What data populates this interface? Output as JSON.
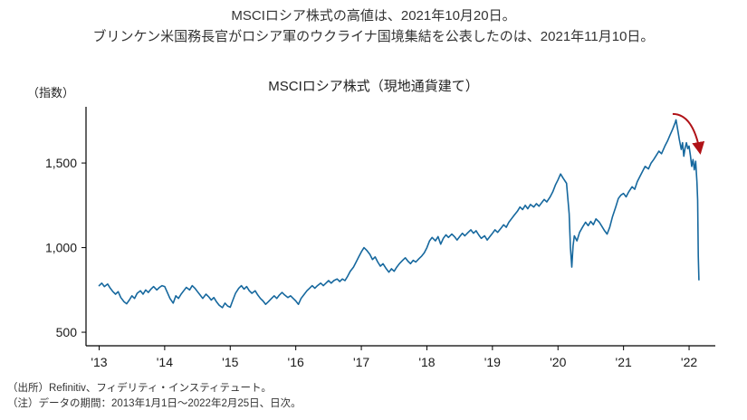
{
  "header": {
    "line1": "MSCIロシア株式の高値は、2021年10月20日。",
    "line2": "ブリンケン米国務長官がロシア軍のウクライナ国境集結を公表したのは、2021年11月10日。"
  },
  "footer": {
    "source": "（出所）Refinitiv、フィデリティ・インスティテュート。",
    "note": "（注）データの期間：2013年1月1日〜2022年2月25日、日次。"
  },
  "chart_data": {
    "type": "line",
    "title": "MSCIロシア株式（現地通貨建て）",
    "xlabel": "",
    "ylabel": "（指数）",
    "unit_label": "（指数）",
    "grid": false,
    "legend": "none",
    "xlim": [
      2012.8,
      2022.4
    ],
    "ylim": [
      420,
      1800
    ],
    "y_ticks": [
      {
        "value": 500,
        "label": "500"
      },
      {
        "value": 1000,
        "label": "1,000"
      },
      {
        "value": 1500,
        "label": "1,500"
      }
    ],
    "x_ticks": [
      {
        "value": 2013,
        "label": "'13"
      },
      {
        "value": 2014,
        "label": "'14"
      },
      {
        "value": 2015,
        "label": "'15"
      },
      {
        "value": 2016,
        "label": "'16"
      },
      {
        "value": 2017,
        "label": "'17"
      },
      {
        "value": 2018,
        "label": "'18"
      },
      {
        "value": 2019,
        "label": "'19"
      },
      {
        "value": 2020,
        "label": "'20"
      },
      {
        "value": 2021,
        "label": "'21"
      },
      {
        "value": 2022,
        "label": "'22"
      }
    ],
    "annotation": {
      "type": "arrow",
      "meaning": "peak-then-plunge marker",
      "color": "#b01217",
      "from_x": 2021.75,
      "from_y": 1790,
      "to_x": 2022.17,
      "to_y": 1560
    },
    "series": [
      {
        "name": "MSCIロシア株式（現地通貨建て）",
        "color": "#16689e",
        "points": [
          [
            2013.0,
            775
          ],
          [
            2013.04,
            790
          ],
          [
            2013.08,
            770
          ],
          [
            2013.13,
            785
          ],
          [
            2013.17,
            760
          ],
          [
            2013.21,
            740
          ],
          [
            2013.25,
            725
          ],
          [
            2013.29,
            740
          ],
          [
            2013.33,
            705
          ],
          [
            2013.38,
            680
          ],
          [
            2013.42,
            668
          ],
          [
            2013.46,
            690
          ],
          [
            2013.5,
            715
          ],
          [
            2013.54,
            700
          ],
          [
            2013.58,
            730
          ],
          [
            2013.63,
            745
          ],
          [
            2013.67,
            725
          ],
          [
            2013.71,
            750
          ],
          [
            2013.75,
            735
          ],
          [
            2013.79,
            755
          ],
          [
            2013.83,
            770
          ],
          [
            2013.88,
            750
          ],
          [
            2013.92,
            765
          ],
          [
            2013.96,
            775
          ],
          [
            2014.0,
            770
          ],
          [
            2014.04,
            735
          ],
          [
            2014.08,
            700
          ],
          [
            2014.13,
            672
          ],
          [
            2014.17,
            715
          ],
          [
            2014.21,
            700
          ],
          [
            2014.25,
            725
          ],
          [
            2014.29,
            745
          ],
          [
            2014.33,
            765
          ],
          [
            2014.38,
            750
          ],
          [
            2014.42,
            775
          ],
          [
            2014.46,
            760
          ],
          [
            2014.5,
            740
          ],
          [
            2014.54,
            720
          ],
          [
            2014.58,
            700
          ],
          [
            2014.63,
            725
          ],
          [
            2014.67,
            710
          ],
          [
            2014.71,
            690
          ],
          [
            2014.75,
            705
          ],
          [
            2014.79,
            680
          ],
          [
            2014.83,
            660
          ],
          [
            2014.88,
            645
          ],
          [
            2014.92,
            672
          ],
          [
            2014.96,
            655
          ],
          [
            2015.0,
            648
          ],
          [
            2015.04,
            690
          ],
          [
            2015.08,
            730
          ],
          [
            2015.13,
            760
          ],
          [
            2015.17,
            775
          ],
          [
            2015.21,
            755
          ],
          [
            2015.25,
            770
          ],
          [
            2015.29,
            745
          ],
          [
            2015.33,
            730
          ],
          [
            2015.38,
            745
          ],
          [
            2015.42,
            720
          ],
          [
            2015.46,
            700
          ],
          [
            2015.5,
            685
          ],
          [
            2015.54,
            665
          ],
          [
            2015.58,
            680
          ],
          [
            2015.63,
            700
          ],
          [
            2015.67,
            715
          ],
          [
            2015.71,
            700
          ],
          [
            2015.75,
            720
          ],
          [
            2015.79,
            735
          ],
          [
            2015.83,
            720
          ],
          [
            2015.88,
            705
          ],
          [
            2015.92,
            715
          ],
          [
            2015.96,
            700
          ],
          [
            2016.0,
            685
          ],
          [
            2016.04,
            665
          ],
          [
            2016.08,
            700
          ],
          [
            2016.13,
            725
          ],
          [
            2016.17,
            745
          ],
          [
            2016.21,
            760
          ],
          [
            2016.25,
            775
          ],
          [
            2016.29,
            760
          ],
          [
            2016.33,
            775
          ],
          [
            2016.38,
            790
          ],
          [
            2016.42,
            775
          ],
          [
            2016.46,
            790
          ],
          [
            2016.5,
            805
          ],
          [
            2016.54,
            790
          ],
          [
            2016.58,
            805
          ],
          [
            2016.63,
            815
          ],
          [
            2016.67,
            800
          ],
          [
            2016.71,
            815
          ],
          [
            2016.75,
            805
          ],
          [
            2016.79,
            830
          ],
          [
            2016.83,
            860
          ],
          [
            2016.88,
            885
          ],
          [
            2016.92,
            915
          ],
          [
            2016.96,
            945
          ],
          [
            2017.0,
            975
          ],
          [
            2017.04,
            1000
          ],
          [
            2017.08,
            985
          ],
          [
            2017.13,
            960
          ],
          [
            2017.17,
            930
          ],
          [
            2017.21,
            945
          ],
          [
            2017.25,
            915
          ],
          [
            2017.29,
            890
          ],
          [
            2017.33,
            905
          ],
          [
            2017.38,
            875
          ],
          [
            2017.42,
            855
          ],
          [
            2017.46,
            875
          ],
          [
            2017.5,
            860
          ],
          [
            2017.54,
            885
          ],
          [
            2017.58,
            905
          ],
          [
            2017.63,
            925
          ],
          [
            2017.67,
            940
          ],
          [
            2017.71,
            920
          ],
          [
            2017.75,
            905
          ],
          [
            2017.79,
            925
          ],
          [
            2017.83,
            915
          ],
          [
            2017.88,
            935
          ],
          [
            2017.92,
            950
          ],
          [
            2017.96,
            970
          ],
          [
            2018.0,
            1000
          ],
          [
            2018.04,
            1040
          ],
          [
            2018.08,
            1060
          ],
          [
            2018.13,
            1040
          ],
          [
            2018.17,
            1065
          ],
          [
            2018.21,
            1020
          ],
          [
            2018.25,
            1055
          ],
          [
            2018.29,
            1075
          ],
          [
            2018.33,
            1060
          ],
          [
            2018.38,
            1080
          ],
          [
            2018.42,
            1065
          ],
          [
            2018.46,
            1045
          ],
          [
            2018.5,
            1065
          ],
          [
            2018.54,
            1085
          ],
          [
            2018.58,
            1070
          ],
          [
            2018.63,
            1090
          ],
          [
            2018.67,
            1105
          ],
          [
            2018.71,
            1085
          ],
          [
            2018.75,
            1100
          ],
          [
            2018.79,
            1075
          ],
          [
            2018.83,
            1055
          ],
          [
            2018.88,
            1070
          ],
          [
            2018.92,
            1045
          ],
          [
            2018.96,
            1065
          ],
          [
            2019.0,
            1085
          ],
          [
            2019.04,
            1105
          ],
          [
            2019.08,
            1090
          ],
          [
            2019.13,
            1115
          ],
          [
            2019.17,
            1135
          ],
          [
            2019.21,
            1120
          ],
          [
            2019.25,
            1150
          ],
          [
            2019.29,
            1170
          ],
          [
            2019.33,
            1190
          ],
          [
            2019.38,
            1215
          ],
          [
            2019.42,
            1240
          ],
          [
            2019.46,
            1225
          ],
          [
            2019.5,
            1250
          ],
          [
            2019.54,
            1230
          ],
          [
            2019.58,
            1255
          ],
          [
            2019.63,
            1240
          ],
          [
            2019.67,
            1260
          ],
          [
            2019.71,
            1245
          ],
          [
            2019.75,
            1265
          ],
          [
            2019.79,
            1285
          ],
          [
            2019.83,
            1270
          ],
          [
            2019.88,
            1300
          ],
          [
            2019.92,
            1330
          ],
          [
            2019.96,
            1370
          ],
          [
            2020.0,
            1400
          ],
          [
            2020.04,
            1435
          ],
          [
            2020.08,
            1410
          ],
          [
            2020.13,
            1380
          ],
          [
            2020.17,
            1200
          ],
          [
            2020.19,
            1000
          ],
          [
            2020.21,
            885
          ],
          [
            2020.23,
            1010
          ],
          [
            2020.25,
            1070
          ],
          [
            2020.29,
            1040
          ],
          [
            2020.33,
            1090
          ],
          [
            2020.38,
            1125
          ],
          [
            2020.42,
            1150
          ],
          [
            2020.46,
            1130
          ],
          [
            2020.5,
            1155
          ],
          [
            2020.54,
            1135
          ],
          [
            2020.58,
            1170
          ],
          [
            2020.63,
            1150
          ],
          [
            2020.67,
            1125
          ],
          [
            2020.71,
            1100
          ],
          [
            2020.75,
            1080
          ],
          [
            2020.79,
            1120
          ],
          [
            2020.83,
            1180
          ],
          [
            2020.88,
            1240
          ],
          [
            2020.92,
            1290
          ],
          [
            2020.96,
            1310
          ],
          [
            2021.0,
            1320
          ],
          [
            2021.04,
            1300
          ],
          [
            2021.08,
            1330
          ],
          [
            2021.13,
            1360
          ],
          [
            2021.17,
            1345
          ],
          [
            2021.21,
            1390
          ],
          [
            2021.25,
            1420
          ],
          [
            2021.29,
            1450
          ],
          [
            2021.33,
            1480
          ],
          [
            2021.38,
            1465
          ],
          [
            2021.42,
            1500
          ],
          [
            2021.46,
            1520
          ],
          [
            2021.5,
            1545
          ],
          [
            2021.54,
            1570
          ],
          [
            2021.58,
            1555
          ],
          [
            2021.63,
            1600
          ],
          [
            2021.67,
            1630
          ],
          [
            2021.71,
            1665
          ],
          [
            2021.75,
            1700
          ],
          [
            2021.79,
            1740
          ],
          [
            2021.8,
            1755
          ],
          [
            2021.83,
            1690
          ],
          [
            2021.85,
            1640
          ],
          [
            2021.88,
            1580
          ],
          [
            2021.9,
            1620
          ],
          [
            2021.92,
            1540
          ],
          [
            2021.94,
            1590
          ],
          [
            2021.96,
            1620
          ],
          [
            2021.98,
            1585
          ],
          [
            2022.0,
            1600
          ],
          [
            2022.02,
            1545
          ],
          [
            2022.04,
            1480
          ],
          [
            2022.06,
            1520
          ],
          [
            2022.08,
            1460
          ],
          [
            2022.1,
            1510
          ],
          [
            2022.11,
            1450
          ],
          [
            2022.12,
            1390
          ],
          [
            2022.13,
            1280
          ],
          [
            2022.14,
            950
          ],
          [
            2022.15,
            810
          ]
        ]
      }
    ]
  }
}
